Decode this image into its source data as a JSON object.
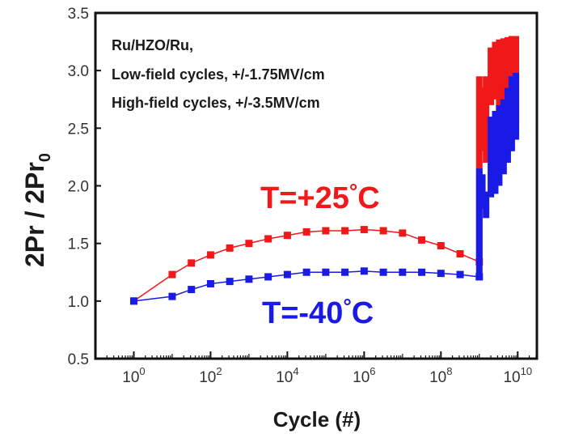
{
  "chart_data": {
    "type": "scatter",
    "xlabel": "Cycle (#)",
    "ylabel_main": "2Pr / 2Pr",
    "ylabel_sub": "0",
    "x_scale": "log",
    "xlim": [
      0.1,
      31622776601
    ],
    "ylim": [
      0.5,
      3.5
    ],
    "y_ticks": [
      "0.5",
      "1.0",
      "1.5",
      "2.0",
      "2.5",
      "3.0",
      "3.5"
    ],
    "x_tick_exponents": [
      "0",
      "2",
      "4",
      "6",
      "8",
      "10"
    ],
    "x_tick_base": "10",
    "annotations": [
      "Ru/HZO/Ru,",
      "Low-field cycles, +/-1.75MV/cm",
      "High-field cycles, +/-3.5MV/cm"
    ],
    "colors": {
      "red_series": "#f01818",
      "blue_series": "#1a1ae6"
    },
    "series": [
      {
        "label_main": "T=+25",
        "label_unit": "C",
        "label_degree": "°",
        "color": "#f01818",
        "x": [
          1,
          10,
          31.6,
          100,
          316,
          1000,
          3162,
          10000,
          31623,
          100000,
          316228,
          1000000,
          3162278,
          10000000,
          31622777,
          100000000,
          316227766,
          1000000000
        ],
        "y": [
          1.0,
          1.23,
          1.33,
          1.4,
          1.46,
          1.5,
          1.54,
          1.57,
          1.6,
          1.61,
          1.61,
          1.62,
          1.61,
          1.59,
          1.53,
          1.48,
          1.41,
          1.34
        ],
        "high_field_bands": [
          {
            "x": 1000000000,
            "y_low": 1.34,
            "y_high": 2.95
          },
          {
            "x": 1200000000,
            "y_low": 2.3,
            "y_high": 2.85
          },
          {
            "x": 1500000000,
            "y_low": 2.2,
            "y_high": 2.95
          },
          {
            "x": 2000000000,
            "y_low": 2.7,
            "y_high": 3.2
          },
          {
            "x": 2600000000,
            "y_low": 2.75,
            "y_high": 3.25
          },
          {
            "x": 3300000000,
            "y_low": 2.5,
            "y_high": 3.27
          },
          {
            "x": 4300000000,
            "y_low": 2.3,
            "y_high": 3.28
          },
          {
            "x": 5500000000,
            "y_low": 2.4,
            "y_high": 3.29
          },
          {
            "x": 7000000000,
            "y_low": 2.5,
            "y_high": 3.3
          },
          {
            "x": 9000000000,
            "y_low": 2.55,
            "y_high": 3.3
          }
        ]
      },
      {
        "label_main": "T=-40",
        "label_unit": "C",
        "label_degree": "°",
        "color": "#1a1ae6",
        "x": [
          1,
          10,
          31.6,
          100,
          316,
          1000,
          3162,
          10000,
          31623,
          100000,
          316228,
          1000000,
          3162278,
          10000000,
          31622777,
          100000000,
          316227766,
          1000000000
        ],
        "y": [
          1.0,
          1.04,
          1.1,
          1.15,
          1.17,
          1.19,
          1.21,
          1.23,
          1.25,
          1.25,
          1.25,
          1.26,
          1.25,
          1.25,
          1.25,
          1.24,
          1.23,
          1.21
        ],
        "high_field_bands": [
          {
            "x": 1000000000,
            "y_low": 1.21,
            "y_high": 2.15
          },
          {
            "x": 1200000000,
            "y_low": 1.8,
            "y_high": 2.1
          },
          {
            "x": 1500000000,
            "y_low": 1.72,
            "y_high": 1.95
          },
          {
            "x": 2000000000,
            "y_low": 1.9,
            "y_high": 2.6
          },
          {
            "x": 2600000000,
            "y_low": 1.93,
            "y_high": 2.65
          },
          {
            "x": 3300000000,
            "y_low": 2.0,
            "y_high": 2.7
          },
          {
            "x": 4300000000,
            "y_low": 2.1,
            "y_high": 2.75
          },
          {
            "x": 5500000000,
            "y_low": 2.2,
            "y_high": 2.85
          },
          {
            "x": 7000000000,
            "y_low": 2.3,
            "y_high": 2.95
          },
          {
            "x": 9000000000,
            "y_low": 2.4,
            "y_high": 2.98
          }
        ]
      }
    ]
  }
}
